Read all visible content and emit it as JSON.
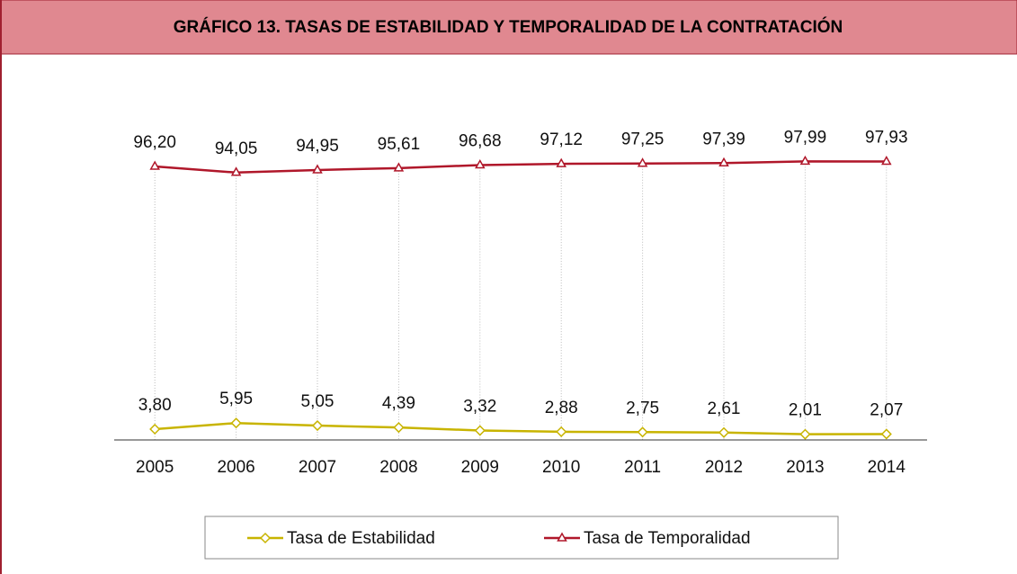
{
  "chart_data": {
    "type": "line",
    "title": "GRÁFICO 13. TASAS DE ESTABILIDAD Y TEMPORALIDAD DE LA CONTRATACIÓN",
    "categories": [
      "2005",
      "2006",
      "2007",
      "2008",
      "2009",
      "2010",
      "2011",
      "2012",
      "2013",
      "2014"
    ],
    "series": [
      {
        "name": "Tasa de Estabilidad",
        "color": "#c8b400",
        "marker": "diamond",
        "values": [
          3.8,
          5.95,
          5.05,
          4.39,
          3.32,
          2.88,
          2.75,
          2.61,
          2.01,
          2.07
        ],
        "value_labels": [
          "3,80",
          "5,95",
          "5,05",
          "4,39",
          "3,32",
          "2,88",
          "2,75",
          "2,61",
          "2,01",
          "2,07"
        ]
      },
      {
        "name": "Tasa de Temporalidad",
        "color": "#b0172a",
        "marker": "triangle",
        "values": [
          96.2,
          94.05,
          94.95,
          95.61,
          96.68,
          97.12,
          97.25,
          97.39,
          97.99,
          97.93
        ],
        "value_labels": [
          "96,20",
          "94,05",
          "94,95",
          "95,61",
          "96,68",
          "97,12",
          "97,25",
          "97,39",
          "97,99",
          "97,93"
        ]
      }
    ],
    "ylim": [
      0,
      100
    ],
    "legend": "bottom"
  }
}
